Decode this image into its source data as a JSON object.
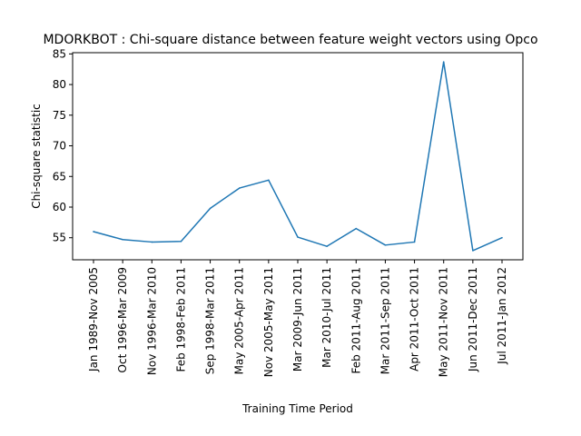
{
  "chart_data": {
    "type": "line",
    "title": "MDORKBOT : Chi-square distance between feature weight vectors using Opco",
    "xlabel": "Training Time Period",
    "ylabel": "Chi-square statistic",
    "categories": [
      "Jan 1989-Nov 2005",
      "Oct 1996-Mar 2009",
      "Nov 1996-Mar 2010",
      "Feb 1998-Feb 2011",
      "Sep 1998-Mar 2011",
      "May 2005-Apr 2011",
      "Nov 2005-May 2011",
      "Mar 2009-Jun 2011",
      "Mar 2010-Jul 2011",
      "Feb 2011-Aug 2011",
      "Mar 2011-Sep 2011",
      "Apr 2011-Oct 2011",
      "May 2011-Nov 2011",
      "Jun 2011-Dec 2011",
      "Jul 2011-Jan 2012"
    ],
    "series": [
      {
        "values": [
          56.0,
          54.7,
          54.3,
          54.4,
          59.8,
          63.1,
          64.4,
          55.1,
          53.6,
          56.5,
          53.8,
          54.3,
          83.7,
          52.9,
          55.0
        ],
        "color": "#1f77b4"
      }
    ],
    "yticks": [
      55,
      60,
      65,
      70,
      75,
      80,
      85
    ],
    "ylim": [
      51.4,
      85.2
    ],
    "grid": false,
    "legend": "none"
  }
}
